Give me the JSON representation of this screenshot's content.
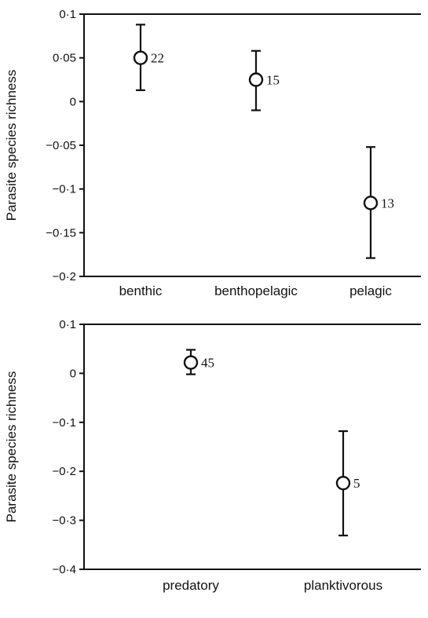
{
  "chart_data": [
    {
      "type": "scatter",
      "title": "",
      "xlabel": "",
      "ylabel": "Parasite species richness",
      "ylim": [
        -0.2,
        0.1
      ],
      "yticks": [
        0.1,
        0.05,
        0,
        -0.05,
        -0.1,
        -0.15,
        -0.2
      ],
      "ytick_labels": [
        "0·1",
        "0·05",
        "0",
        "−0·05",
        "−0·1",
        "−0·15",
        "−0·2"
      ],
      "categories": [
        "benthic",
        "benthopelagic",
        "pelagic"
      ],
      "values": [
        0.05,
        0.025,
        -0.116
      ],
      "error_low": [
        0.013,
        -0.01,
        -0.179
      ],
      "error_high": [
        0.088,
        0.058,
        -0.052
      ],
      "n_labels": [
        "22",
        "15",
        "13"
      ]
    },
    {
      "type": "scatter",
      "title": "",
      "xlabel": "",
      "ylabel": "Parasite species richness",
      "ylim": [
        -0.4,
        0.1
      ],
      "yticks": [
        0.1,
        0,
        -0.1,
        -0.2,
        -0.3,
        -0.4
      ],
      "ytick_labels": [
        "0·1",
        "0",
        "−0·1",
        "−0·2",
        "−0·3",
        "−0·4"
      ],
      "categories": [
        "predatory",
        "planktivorous"
      ],
      "values": [
        0.022,
        -0.224
      ],
      "error_low": [
        -0.002,
        -0.331
      ],
      "error_high": [
        0.048,
        -0.118
      ],
      "n_labels": [
        "45",
        "5"
      ]
    }
  ]
}
